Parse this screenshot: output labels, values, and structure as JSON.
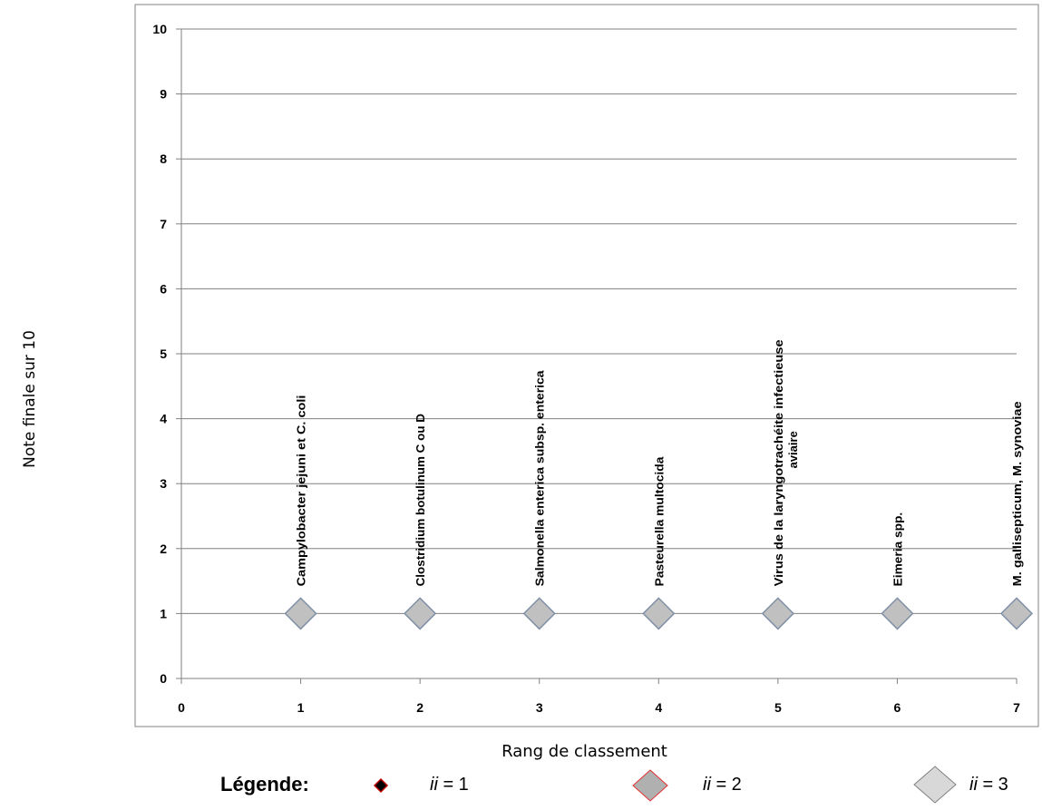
{
  "chart_data": {
    "type": "scatter",
    "title": "",
    "xlabel": "Rang de classement",
    "ylabel": "Note finale sur 10",
    "xlim": [
      0,
      7
    ],
    "ylim": [
      0,
      10
    ],
    "x_ticks": [
      "0",
      "1",
      "2",
      "3",
      "4",
      "5",
      "6",
      "7"
    ],
    "y_ticks": [
      "0",
      "1",
      "2",
      "3",
      "4",
      "5",
      "6",
      "7",
      "8",
      "9",
      "10"
    ],
    "grid": "horizontal",
    "series": [
      {
        "marker": "diamond",
        "marker_color": "#c0c0c0",
        "x": [
          1,
          2,
          3,
          4,
          5,
          6,
          7
        ],
        "y": [
          1,
          1,
          1,
          1,
          1,
          1,
          1
        ],
        "labels": [
          "Campylobacter jejuni et C. coli",
          "Clostridium botulinum C ou D",
          "Salmonella enterica subsp. enterica",
          "Pasteurella multocida",
          "Virus de la laryngotrachéite infectieuse aviaire",
          "Eimeria spp.",
          "M. gallisepticum,  M. synoviae"
        ]
      }
    ]
  },
  "legend": {
    "title": "Légende:",
    "items": [
      {
        "var": "ii",
        "text": " = 1",
        "marker": "diamond-small",
        "color": "#000000",
        "border": "#c00000"
      },
      {
        "var": "ii",
        "text": " = 2",
        "marker": "diamond-medium",
        "color": "#b0b0b0",
        "border": "#e03030"
      },
      {
        "var": "ii",
        "text": " = 3",
        "marker": "diamond-large",
        "color": "#d8d8d8",
        "border": "#808080"
      }
    ]
  }
}
